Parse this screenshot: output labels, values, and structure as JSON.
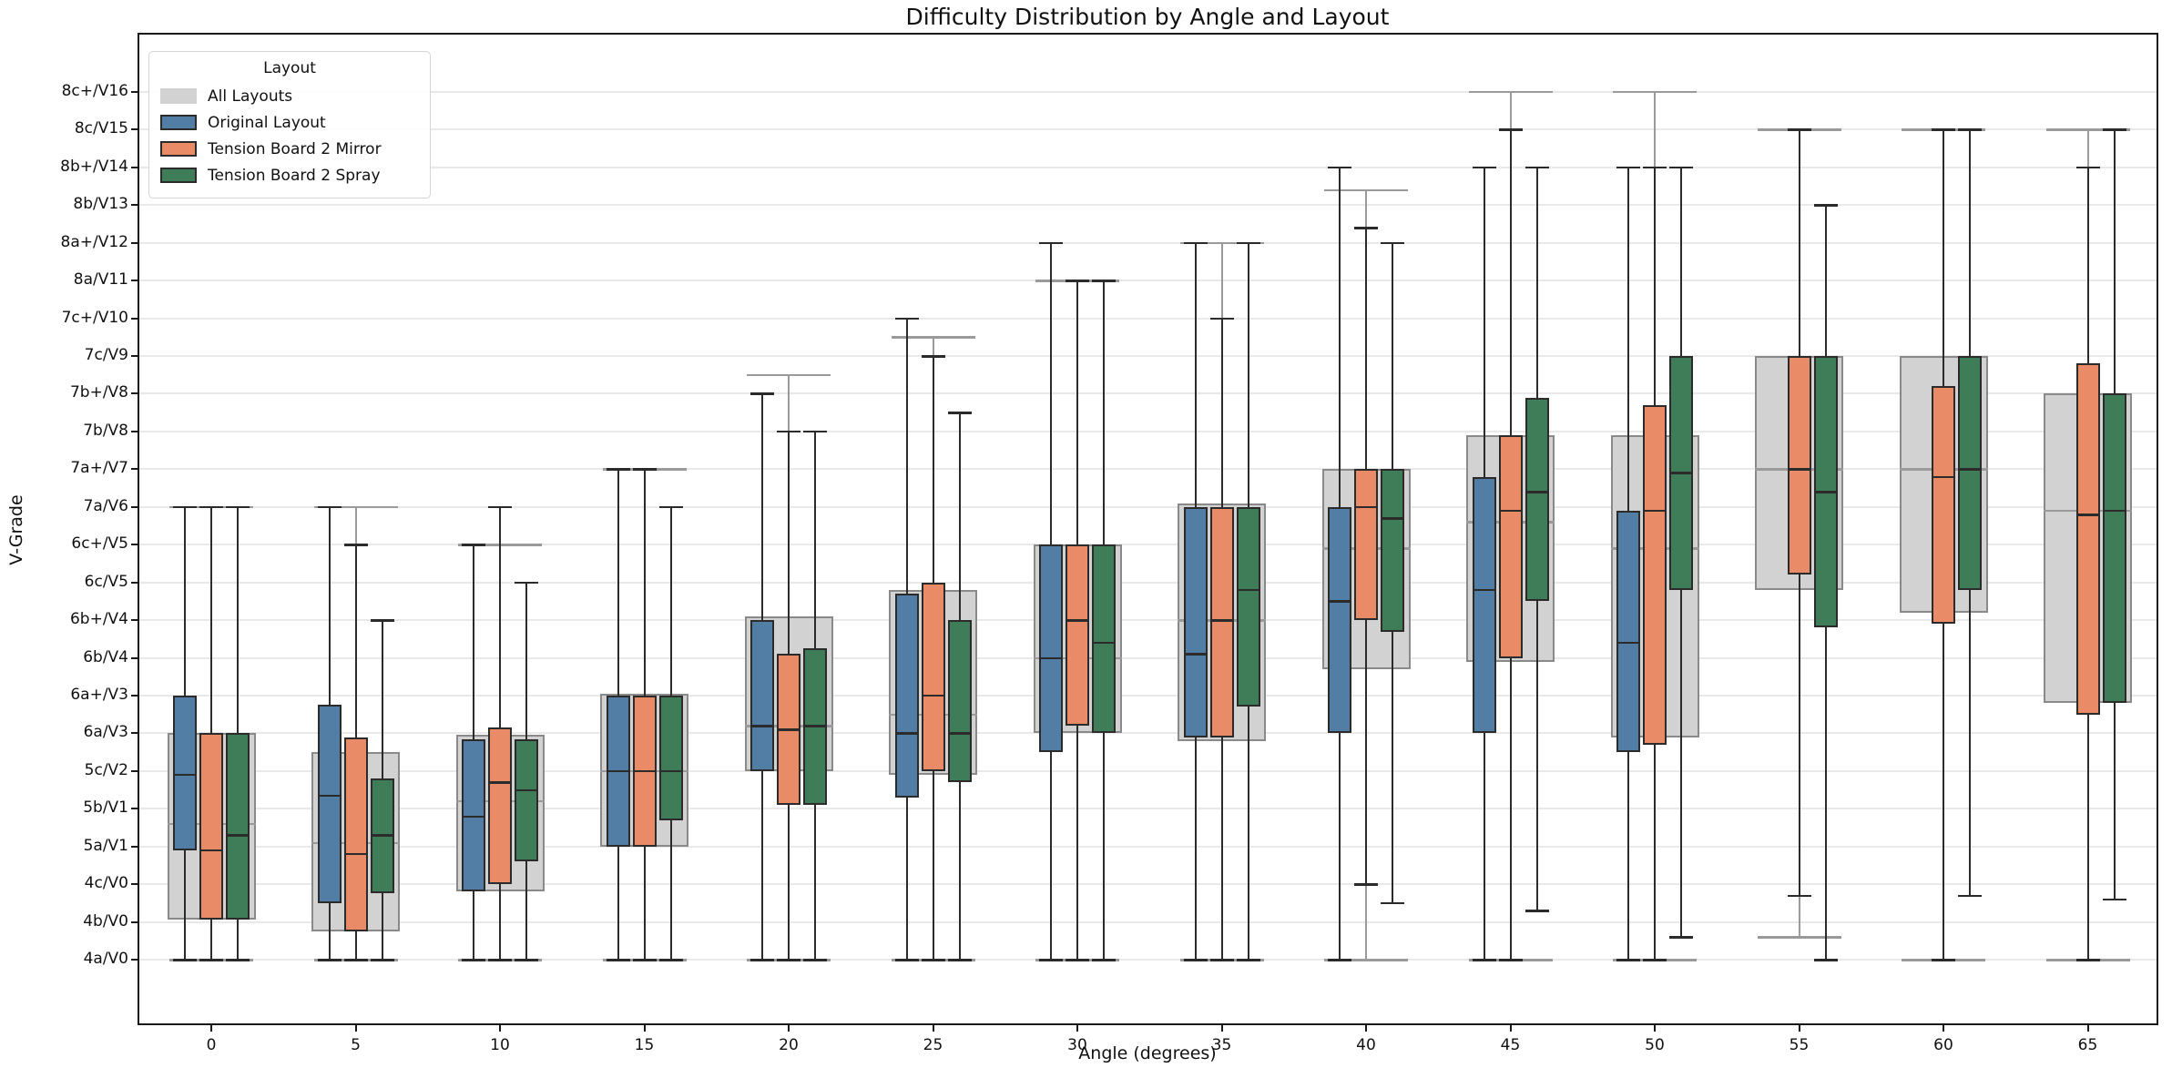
{
  "chart_data": {
    "type": "box",
    "title": "Difficulty Distribution by Angle and Layout",
    "xlabel": "Angle (degrees)",
    "ylabel": "V-Grade",
    "x_categories": [
      "0",
      "5",
      "10",
      "15",
      "20",
      "25",
      "30",
      "35",
      "40",
      "45",
      "50",
      "55",
      "60",
      "65"
    ],
    "y_tick_labels": [
      "4a/V0",
      "4b/V0",
      "4c/V0",
      "5a/V1",
      "5b/V1",
      "5c/V2",
      "6a/V3",
      "6a+/V3",
      "6b/V4",
      "6b+/V4",
      "6c/V5",
      "6c+/V5",
      "7a/V6",
      "7a+/V7",
      "7b/V8",
      "7b+/V8",
      "7c/V9",
      "7c+/V10",
      "8a/V11",
      "8a+/V12",
      "8b/V13",
      "8b+/V14",
      "8c/V15",
      "8c+/V16"
    ],
    "y_scale_note": "box values are in grade index units: 0 = 4a/V0 ... 23 = 8c+/V16; values are [whisker_low, q1, median, q3, whisker_high]",
    "grid": "horizontal",
    "legend": {
      "title": "Layout",
      "position": "upper-left"
    },
    "series": [
      {
        "key": "all",
        "label": "All Layouts",
        "fill": "#d2d2d2",
        "edge": "#8a8a8a",
        "line": "#9a9a9a"
      },
      {
        "key": "original",
        "label": "Original Layout",
        "fill": "#527EA5",
        "edge": "#2b2b2b",
        "line": "#2b2b2b"
      },
      {
        "key": "mirror",
        "label": "Tension Board 2 Mirror",
        "fill": "#E98B67",
        "edge": "#2b2b2b",
        "line": "#2b2b2b"
      },
      {
        "key": "spray",
        "label": "Tension Board 2 Spray",
        "fill": "#3E7D57",
        "edge": "#2b2b2b",
        "line": "#2b2b2b"
      }
    ],
    "groups": [
      {
        "angle": "0",
        "boxes": {
          "all": [
            0,
            1.05,
            3.6,
            6,
            12
          ],
          "original": [
            0,
            2.9,
            4.9,
            7,
            12
          ],
          "mirror": [
            0,
            1.05,
            2.9,
            6,
            12
          ],
          "spray": [
            0,
            1.05,
            3.3,
            6,
            12
          ]
        }
      },
      {
        "angle": "5",
        "boxes": {
          "all": [
            0,
            0.75,
            3.1,
            5.5,
            12
          ],
          "original": [
            0,
            1.5,
            4.35,
            6.75,
            12
          ],
          "mirror": [
            0,
            0.75,
            2.8,
            5.9,
            11
          ],
          "spray": [
            0,
            1.75,
            3.3,
            4.8,
            9
          ]
        }
      },
      {
        "angle": "10",
        "boxes": {
          "all": [
            0,
            1.8,
            4.2,
            5.95,
            11
          ],
          "original": [
            0,
            1.8,
            3.8,
            5.85,
            11
          ],
          "mirror": [
            0,
            2,
            4.7,
            6.15,
            12
          ],
          "spray": [
            0,
            2.6,
            4.5,
            5.85,
            10
          ]
        }
      },
      {
        "angle": "15",
        "boxes": {
          "all": [
            0,
            3,
            5,
            7.05,
            13
          ],
          "original": [
            0,
            3,
            5,
            7,
            13
          ],
          "mirror": [
            0,
            3,
            5,
            7,
            13
          ],
          "spray": [
            0,
            3.7,
            5,
            7,
            12
          ]
        }
      },
      {
        "angle": "20",
        "boxes": {
          "all": [
            0,
            5,
            6.2,
            9.1,
            15.5
          ],
          "original": [
            0,
            5,
            6.2,
            9,
            15
          ],
          "mirror": [
            0,
            4.1,
            6.1,
            8.1,
            14
          ],
          "spray": [
            0,
            4.1,
            6.2,
            8.25,
            14
          ]
        }
      },
      {
        "angle": "25",
        "boxes": {
          "all": [
            0,
            4.9,
            6.5,
            9.8,
            16.5
          ],
          "original": [
            0,
            4.3,
            6,
            9.7,
            17
          ],
          "mirror": [
            0,
            5,
            7,
            10,
            16
          ],
          "spray": [
            0,
            4.7,
            6,
            9,
            14.5
          ]
        }
      },
      {
        "angle": "30",
        "boxes": {
          "all": [
            0,
            6,
            8,
            11,
            18
          ],
          "original": [
            0,
            5.5,
            8,
            11,
            19
          ],
          "mirror": [
            0,
            6.2,
            9,
            11,
            18
          ],
          "spray": [
            0,
            6,
            8.4,
            11,
            18
          ]
        }
      },
      {
        "angle": "35",
        "boxes": {
          "all": [
            0,
            5.8,
            9,
            12.1,
            19
          ],
          "original": [
            0,
            5.9,
            8.1,
            12,
            19
          ],
          "mirror": [
            0,
            5.9,
            9,
            12,
            17
          ],
          "spray": [
            0,
            6.7,
            9.8,
            12,
            19
          ]
        }
      },
      {
        "angle": "40",
        "boxes": {
          "all": [
            0,
            7.7,
            10.9,
            13,
            20.4
          ],
          "original": [
            0,
            6,
            9.5,
            12,
            21
          ],
          "mirror": [
            2,
            9,
            12,
            13,
            19.4
          ],
          "spray": [
            1.5,
            8.7,
            11.7,
            13,
            19
          ]
        }
      },
      {
        "angle": "45",
        "boxes": {
          "all": [
            0,
            7.9,
            11.6,
            13.9,
            23
          ],
          "original": [
            0,
            6,
            9.8,
            12.8,
            21
          ],
          "mirror": [
            0,
            8,
            11.9,
            13.9,
            22
          ],
          "spray": [
            1.3,
            9.5,
            12.4,
            14.9,
            21
          ]
        }
      },
      {
        "angle": "50",
        "boxes": {
          "all": [
            0,
            5.9,
            10.9,
            13.9,
            23
          ],
          "original": [
            0,
            5.5,
            8.4,
            11.9,
            21
          ],
          "mirror": [
            0,
            5.7,
            11.9,
            14.7,
            21
          ],
          "spray": [
            0.6,
            9.8,
            12.9,
            16,
            21
          ]
        }
      },
      {
        "angle": "55",
        "boxes": {
          "all": [
            0.6,
            9.8,
            13,
            16,
            22
          ],
          "mirror": [
            1.7,
            10.2,
            13,
            16,
            22
          ],
          "spray": [
            0,
            8.8,
            12.4,
            16,
            20
          ]
        }
      },
      {
        "angle": "60",
        "boxes": {
          "all": [
            0,
            9.2,
            13,
            16,
            22
          ],
          "mirror": [
            0,
            8.9,
            12.8,
            15.2,
            22
          ],
          "spray": [
            1.7,
            9.8,
            13,
            16,
            22
          ]
        }
      },
      {
        "angle": "65",
        "boxes": {
          "all": [
            0,
            6.8,
            11.9,
            15,
            22
          ],
          "mirror": [
            0,
            6.5,
            11.8,
            15.8,
            21
          ],
          "spray": [
            1.6,
            6.8,
            11.9,
            15,
            22
          ]
        }
      }
    ]
  }
}
